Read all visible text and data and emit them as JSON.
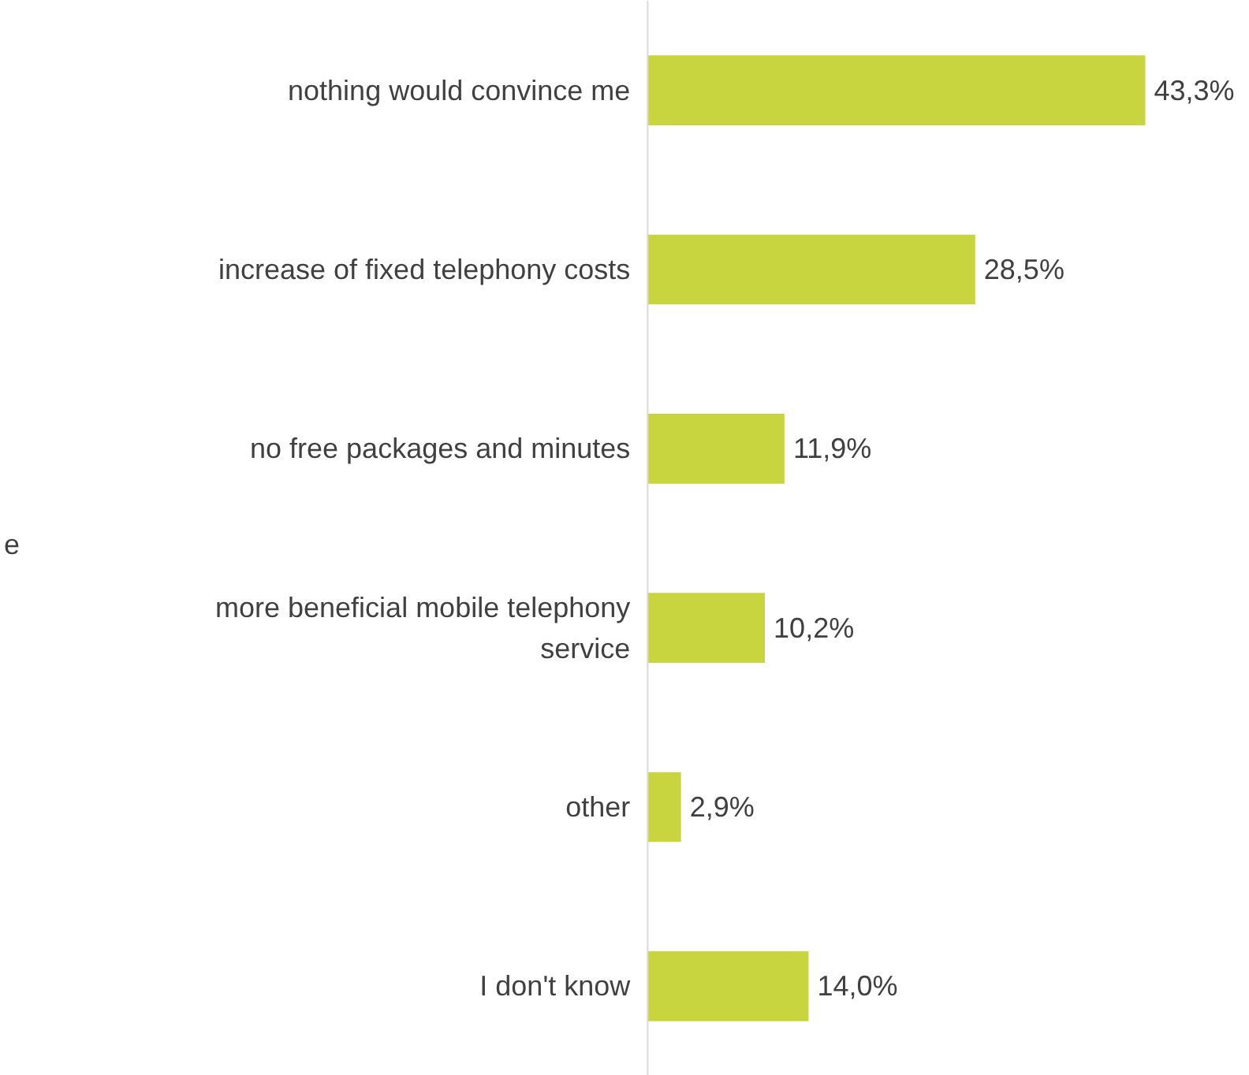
{
  "chart_data": {
    "type": "bar",
    "orientation": "horizontal",
    "categories": [
      "nothing would convince me",
      "increase of fixed telephony costs",
      "no free packages and minutes",
      "more beneficial mobile telephony service",
      "other",
      "I don't know"
    ],
    "values": [
      43.3,
      28.5,
      11.9,
      10.2,
      2.9,
      14.0
    ],
    "value_labels": [
      "43,3%",
      "28,5%",
      "11,9%",
      "10,2%",
      "2,9%",
      "14,0%"
    ],
    "color": "#c8d53e",
    "annotations": [
      "e"
    ],
    "grid": false
  }
}
